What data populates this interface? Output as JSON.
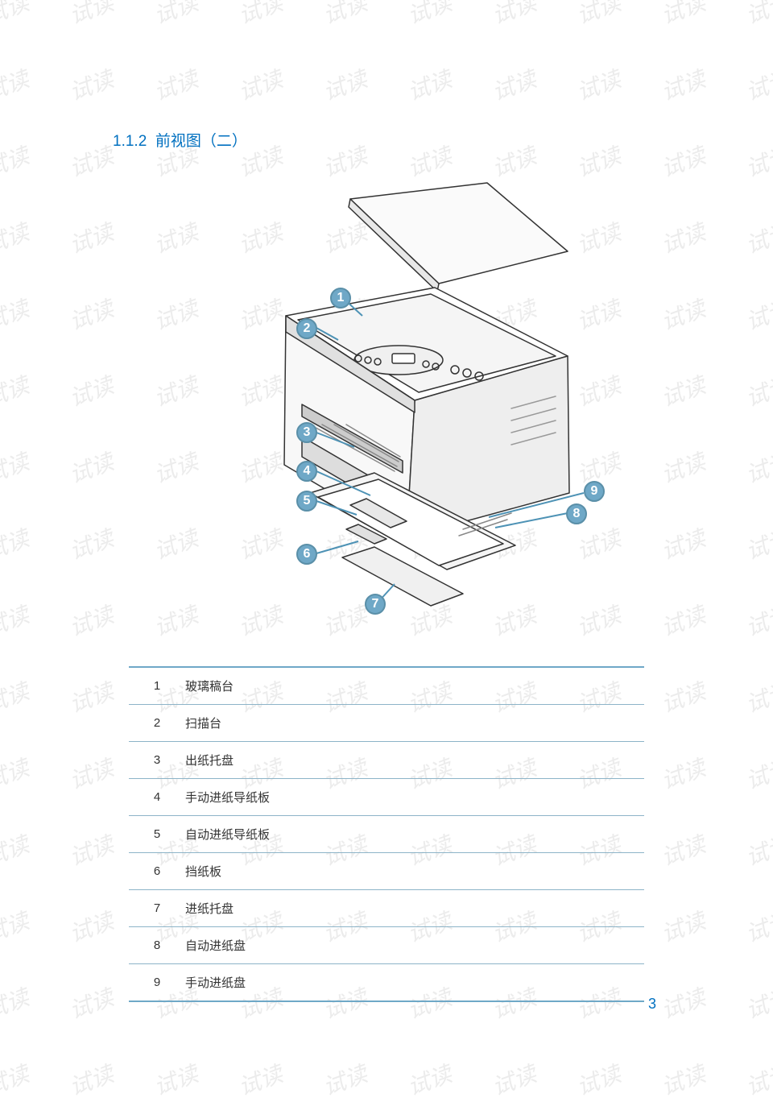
{
  "watermark_text": "试读",
  "section_number": "1.1.2",
  "section_title": "前视图（二）",
  "section_color": "#0070c0",
  "page_number": "3",
  "callouts": {
    "c1": "1",
    "c2": "2",
    "c3": "3",
    "c4": "4",
    "c5": "5",
    "c6": "6",
    "c7": "7",
    "c8": "8",
    "c9": "9"
  },
  "table_rows": [
    {
      "num": "1",
      "label": "玻璃稿台"
    },
    {
      "num": "2",
      "label": "扫描台"
    },
    {
      "num": "3",
      "label": "出纸托盘"
    },
    {
      "num": "4",
      "label": "手动进纸导纸板"
    },
    {
      "num": "5",
      "label": "自动进纸导纸板"
    },
    {
      "num": "6",
      "label": "挡纸板"
    },
    {
      "num": "7",
      "label": "进纸托盘"
    },
    {
      "num": "8",
      "label": "自动进纸盘"
    },
    {
      "num": "9",
      "label": "手动进纸盘"
    }
  ],
  "style": {
    "accent_color": "#0070c0",
    "callout_bg": "#6fa8c7",
    "callout_border": "#5a8fa8",
    "table_border": "#8db4c8",
    "text_color": "#333333"
  }
}
